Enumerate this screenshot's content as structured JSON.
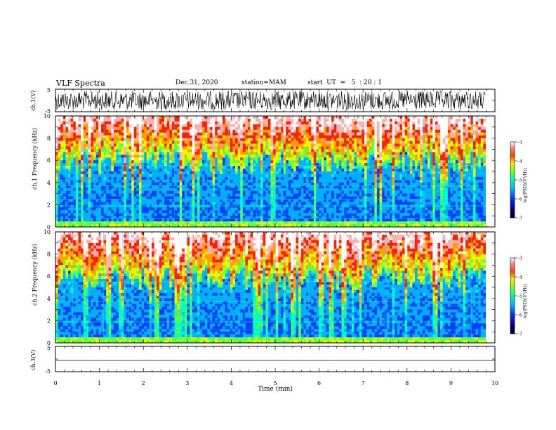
{
  "header": {
    "title": "VLF Spectra",
    "date": "Dec.31, 2020",
    "station": "station=MAM",
    "start": "start  UT  =   5  : 20 : 1"
  },
  "chart_data": [
    {
      "type": "line",
      "panel": "ch1-waveform",
      "ylabel": "ch.1(V)",
      "ylim": [
        -5,
        5
      ],
      "yticks": [
        "5",
        "-5"
      ],
      "xlim": [
        0,
        10
      ],
      "series": [
        {
          "values_description": "dense oscillation roughly between -4 and 4 V"
        }
      ]
    },
    {
      "type": "heatmap",
      "panel": "ch1-spectrogram",
      "ylabel": "ch.1 Frequency (kHz)",
      "ylim": [
        0,
        10
      ],
      "yticks": [
        "0",
        "2",
        "4",
        "6",
        "8",
        "10"
      ],
      "xlim": [
        0,
        10
      ],
      "colorbar": {
        "label": "log(PSD)(V²/Hz)",
        "range": [
          -7,
          -3
        ],
        "ticks": [
          "-3",
          "-4",
          "-5",
          "-6",
          "-7"
        ]
      }
    },
    {
      "type": "heatmap",
      "panel": "ch2-spectrogram",
      "ylabel": "ch.2 Frequency (kHz)",
      "ylim": [
        0,
        10
      ],
      "yticks": [
        "0",
        "2",
        "4",
        "6",
        "8",
        "10"
      ],
      "xlim": [
        0,
        10
      ],
      "colorbar": {
        "label": "log(PSD)(V²/Hz)",
        "range": [
          -7,
          -3
        ],
        "ticks": [
          "-3",
          "-4",
          "-5",
          "-6",
          "-7"
        ]
      }
    },
    {
      "type": "line",
      "panel": "ch3-waveform",
      "ylabel": "ch.3(V)",
      "ylim": [
        -5,
        5
      ],
      "yticks": [
        "5",
        "0",
        "-5"
      ],
      "xlim": [
        0,
        10
      ],
      "series": [
        {
          "values": [
            -1.8,
            -1.8
          ]
        }
      ]
    }
  ],
  "xaxis": {
    "label": "Time  (min)",
    "ticks": [
      "0",
      "1",
      "2",
      "3",
      "4",
      "5",
      "6",
      "7",
      "8",
      "9",
      "10"
    ]
  },
  "colors": {
    "cmap": [
      "#000060",
      "#0000c0",
      "#0040ff",
      "#00b0ff",
      "#00ffc0",
      "#60ff40",
      "#e0ff00",
      "#ffa000",
      "#ff2000",
      "#ffb0b0",
      "#ffffff"
    ]
  }
}
